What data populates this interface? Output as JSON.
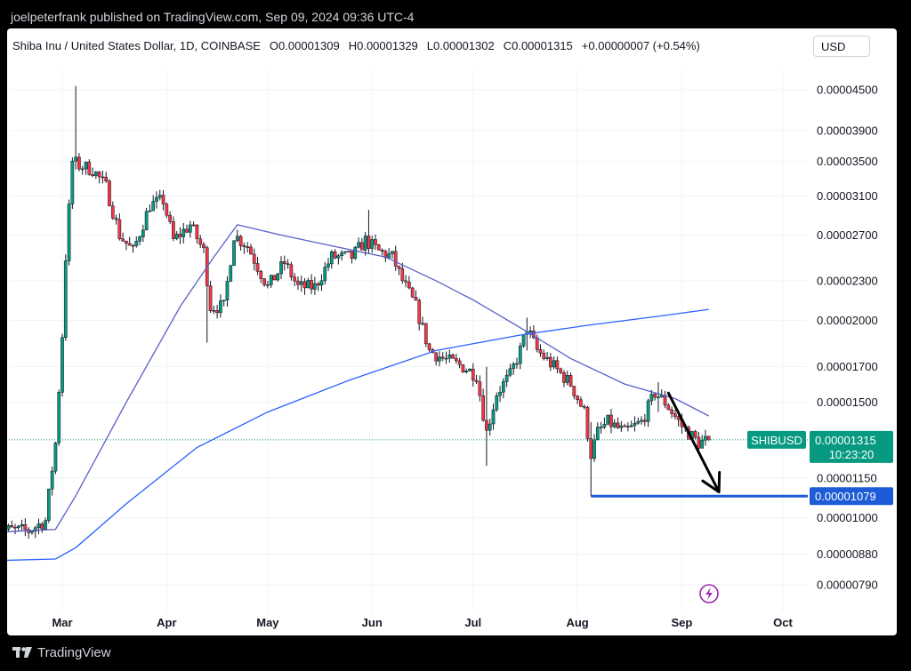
{
  "header": {
    "published": "joelpeterfrank published on TradingView.com, Sep 09, 2024 09:36 UTC-4"
  },
  "legend": {
    "symbol": "Shiba Inu / United States Dollar, 1D, COINBASE",
    "open": "O0.00001309",
    "high": "H0.00001329",
    "low": "L0.00001302",
    "close": "C0.00001315",
    "change": "+0.00000007 (+0.54%)"
  },
  "currency_button": "USD",
  "footer": {
    "logo_text": "TradingView"
  },
  "colors": {
    "up": "#089981",
    "down": "#f23645",
    "ma_fast": "#5b5fc7",
    "ma_slow": "#2962ff",
    "support": "#1e5bd6",
    "tag_green": "#089981",
    "tag_blue": "#1e5bd6",
    "lightning": "#9c27b0"
  },
  "chart_data": {
    "type": "candlestick",
    "symbol": "SHIBUSD",
    "y_scale": "log",
    "ylim": [
      7.5e-06,
      5.2e-06
    ],
    "y_ticks": [
      "0.00004500",
      "0.00003900",
      "0.00003500",
      "0.00003100",
      "0.00002700",
      "0.00002300",
      "0.00002000",
      "0.00001700",
      "0.00001500",
      "0.00001150",
      "0.00001000",
      "0.00000880",
      "0.00000790"
    ],
    "x_ticks": [
      "Mar",
      "Apr",
      "May",
      "Jun",
      "Jul",
      "Aug",
      "Sep",
      "Oct"
    ],
    "x_tick_dates": [
      "2024-03-01",
      "2024-04-01",
      "2024-05-01",
      "2024-06-01",
      "2024-07-01",
      "2024-08-01",
      "2024-09-01",
      "2024-10-01"
    ],
    "x_range": [
      "2024-02-10",
      "2024-10-13"
    ],
    "last_price": {
      "symbol_label": "SHIBUSD",
      "value": "0.00001315",
      "countdown": "10:23:20"
    },
    "support_line": {
      "value": "0.00001079",
      "from": "2024-08-05",
      "to": "2024-10-13"
    },
    "projection_arrow": {
      "from": [
        "2024-08-28",
        1.55e-05
      ],
      "to": [
        "2024-09-12",
        1.095e-05
      ]
    },
    "price_anchors": [
      [
        "2024-02-10",
        9.6e-06
      ],
      [
        "2024-02-20",
        9.55e-06
      ],
      [
        "2024-02-25",
        9.9e-06
      ],
      [
        "2024-02-28",
        1.3e-05
      ],
      [
        "2024-03-01",
        1.9e-05
      ],
      [
        "2024-03-02",
        2.5e-05
      ],
      [
        "2024-03-04",
        3.5e-05
      ],
      [
        "2024-03-06",
        3.45e-05
      ],
      [
        "2024-03-10",
        3.4e-05
      ],
      [
        "2024-03-14",
        3.2e-05
      ],
      [
        "2024-03-18",
        2.7e-05
      ],
      [
        "2024-03-22",
        2.55e-05
      ],
      [
        "2024-03-27",
        3e-05
      ],
      [
        "2024-03-31",
        3.05e-05
      ],
      [
        "2024-04-03",
        2.65e-05
      ],
      [
        "2024-04-08",
        2.8e-05
      ],
      [
        "2024-04-12",
        2.55e-05
      ],
      [
        "2024-04-14",
        2.1e-05
      ],
      [
        "2024-04-18",
        2.1e-05
      ],
      [
        "2024-04-21",
        2.7e-05
      ],
      [
        "2024-04-25",
        2.6e-05
      ],
      [
        "2024-05-01",
        2.25e-05
      ],
      [
        "2024-05-06",
        2.45e-05
      ],
      [
        "2024-05-10",
        2.25e-05
      ],
      [
        "2024-05-15",
        2.25e-05
      ],
      [
        "2024-05-20",
        2.5e-05
      ],
      [
        "2024-05-26",
        2.5e-05
      ],
      [
        "2024-05-30",
        2.65e-05
      ],
      [
        "2024-06-03",
        2.55e-05
      ],
      [
        "2024-06-07",
        2.5e-05
      ],
      [
        "2024-06-10",
        2.3e-05
      ],
      [
        "2024-06-14",
        2.1e-05
      ],
      [
        "2024-06-18",
        1.8e-05
      ],
      [
        "2024-06-22",
        1.75e-05
      ],
      [
        "2024-06-28",
        1.7e-05
      ],
      [
        "2024-07-02",
        1.65e-05
      ],
      [
        "2024-07-05",
        1.35e-05
      ],
      [
        "2024-07-08",
        1.55e-05
      ],
      [
        "2024-07-12",
        1.65e-05
      ],
      [
        "2024-07-15",
        1.8e-05
      ],
      [
        "2024-07-17",
        1.95e-05
      ],
      [
        "2024-07-20",
        1.8e-05
      ],
      [
        "2024-07-25",
        1.7e-05
      ],
      [
        "2024-07-30",
        1.6e-05
      ],
      [
        "2024-08-03",
        1.45e-05
      ],
      [
        "2024-08-05",
        1.25e-05
      ],
      [
        "2024-08-07",
        1.35e-05
      ],
      [
        "2024-08-10",
        1.4e-05
      ],
      [
        "2024-08-15",
        1.35e-05
      ],
      [
        "2024-08-20",
        1.4e-05
      ],
      [
        "2024-08-24",
        1.55e-05
      ],
      [
        "2024-08-27",
        1.5e-05
      ],
      [
        "2024-09-01",
        1.38e-05
      ],
      [
        "2024-09-06",
        1.3e-05
      ],
      [
        "2024-09-09",
        1.315e-05
      ]
    ],
    "extremes": [
      [
        "2024-03-05",
        4.56e-05,
        3.4e-05
      ],
      [
        "2024-04-13",
        2.6e-05,
        1.85e-05
      ],
      [
        "2024-05-31",
        2.95e-05,
        2.55e-05
      ],
      [
        "2024-07-05",
        1.7e-05,
        1.2e-05
      ],
      [
        "2024-07-17",
        2.02e-05,
        1.8e-05
      ],
      [
        "2024-08-05",
        1.4e-05,
        1.079e-05
      ],
      [
        "2024-08-25",
        1.61e-05,
        1.45e-05
      ]
    ],
    "ma_fast": [
      [
        "2024-02-10",
        9.5e-06
      ],
      [
        "2024-02-28",
        9.6e-06
      ],
      [
        "2024-03-05",
        1.08e-05
      ],
      [
        "2024-03-20",
        1.5e-05
      ],
      [
        "2024-04-05",
        2.1e-05
      ],
      [
        "2024-04-15",
        2.5e-05
      ],
      [
        "2024-04-22",
        2.8e-05
      ],
      [
        "2024-05-05",
        2.7e-05
      ],
      [
        "2024-05-20",
        2.6e-05
      ],
      [
        "2024-06-05",
        2.5e-05
      ],
      [
        "2024-06-20",
        2.3e-05
      ],
      [
        "2024-07-01",
        2.15e-05
      ],
      [
        "2024-07-15",
        1.95e-05
      ],
      [
        "2024-07-30",
        1.75e-05
      ],
      [
        "2024-08-15",
        1.6e-05
      ],
      [
        "2024-08-30",
        1.52e-05
      ],
      [
        "2024-09-09",
        1.43e-05
      ]
    ],
    "ma_slow": [
      [
        "2024-02-10",
        8.6e-06
      ],
      [
        "2024-02-28",
        8.65e-06
      ],
      [
        "2024-03-05",
        9e-06
      ],
      [
        "2024-03-20",
        1.05e-05
      ],
      [
        "2024-04-10",
        1.28e-05
      ],
      [
        "2024-05-01",
        1.45e-05
      ],
      [
        "2024-05-25",
        1.62e-05
      ],
      [
        "2024-06-20",
        1.8e-05
      ],
      [
        "2024-07-15",
        1.9e-05
      ],
      [
        "2024-08-05",
        1.97e-05
      ],
      [
        "2024-08-25",
        2.03e-05
      ],
      [
        "2024-09-09",
        2.08e-05
      ]
    ]
  }
}
